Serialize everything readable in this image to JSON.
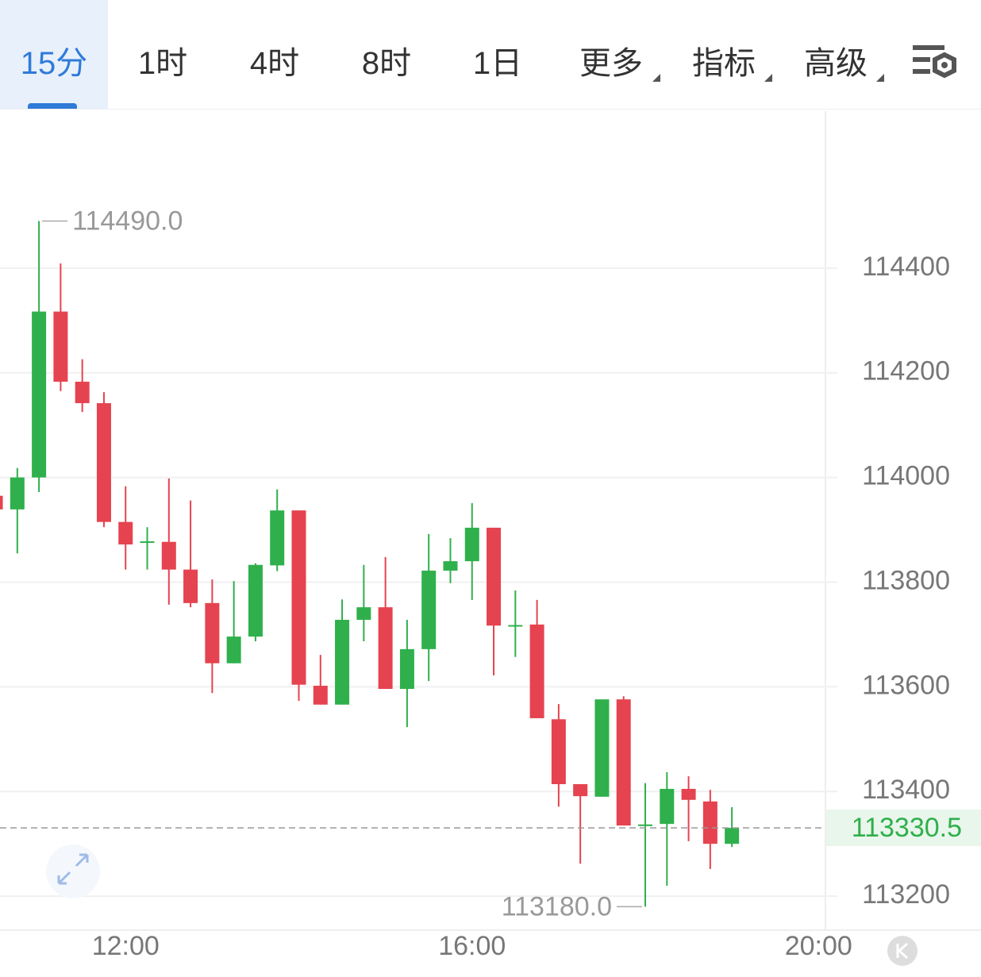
{
  "tabs": [
    "15分",
    "1时",
    "4时",
    "8时",
    "1日",
    "更多",
    "指标",
    "高级"
  ],
  "chart_data": {
    "type": "candlestick",
    "x": [
      10.5,
      10.75,
      11.0,
      11.25,
      11.5,
      11.75,
      12.0,
      12.25,
      12.5,
      12.75,
      13.0,
      13.25,
      13.5,
      13.75,
      14.0,
      14.25,
      14.5,
      14.75,
      15.0,
      15.25,
      15.5,
      15.75,
      16.0,
      16.25,
      16.5,
      16.75,
      17.0,
      17.25,
      17.5,
      17.75,
      18.0,
      18.25,
      18.5,
      18.75,
      19.0
    ],
    "open": [
      113965,
      113939,
      114000,
      114317,
      114183,
      114142,
      113915,
      113875,
      113877,
      113824,
      113760,
      113645,
      113696,
      113832,
      113937,
      113602,
      113566,
      113728,
      113752,
      113596,
      113672,
      113822,
      113840,
      113904,
      113716,
      113719,
      113538,
      113414,
      113390,
      113576,
      113335,
      113338,
      113405,
      113381,
      113300
    ],
    "high": [
      113970,
      114018,
      114490,
      114409,
      114226,
      114163,
      113983,
      113905,
      113998,
      113956,
      113805,
      113802,
      113836,
      113977,
      113937,
      113661,
      113767,
      113833,
      113848,
      113728,
      113892,
      113884,
      113951,
      113904,
      113784,
      113766,
      113567,
      113414,
      113576,
      113582,
      113416,
      113437,
      113429,
      113403,
      113370
    ],
    "low": [
      113935,
      113855,
      113972,
      114165,
      114125,
      113905,
      113824,
      113824,
      113757,
      113752,
      113588,
      113645,
      113687,
      113821,
      113573,
      113566,
      113566,
      113687,
      113596,
      113523,
      113611,
      113798,
      113766,
      113622,
      113657,
      113540,
      113371,
      113262,
      113390,
      113335,
      113180,
      113220,
      113305,
      113252,
      113294
    ],
    "close": [
      113939,
      114000,
      114317,
      114183,
      114142,
      113915,
      113872,
      113878,
      113824,
      113760,
      113645,
      113696,
      113833,
      113937,
      113604,
      113566,
      113728,
      113752,
      113596,
      113672,
      113822,
      113840,
      113904,
      113717,
      113718,
      113540,
      113414,
      113391,
      113576,
      113335,
      113337,
      113405,
      113384,
      113300,
      113330.5
    ],
    "up_color": "#2fb04c",
    "down_color": "#e5434f",
    "xlim": [
      10.55,
      20.08
    ],
    "xticks": [
      {
        "value": 12,
        "label": "12:00"
      },
      {
        "value": 16,
        "label": "16:00"
      },
      {
        "value": 20,
        "label": "20:00"
      }
    ],
    "ylim": [
      113135,
      114700
    ],
    "yticks": [
      113200,
      113400,
      113600,
      113800,
      114000,
      114200,
      114400
    ],
    "grid": true,
    "max_label": {
      "value": 114490,
      "label": "114490.0"
    },
    "min_label": {
      "value": 113180,
      "label": "113180.0"
    },
    "last_price": {
      "value": 113330.5,
      "label": "113330.5"
    }
  }
}
